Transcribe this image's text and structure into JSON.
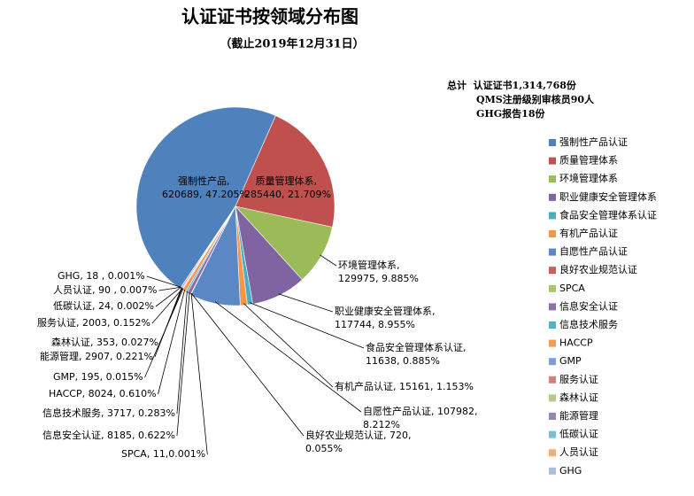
{
  "chart_data": {
    "type": "pie",
    "title": "认证证书按领域分布图",
    "subtitle": "（截止2019年12月31日）",
    "notes": [
      "总计  认证证书1,314,768份",
      "QMS注册级别审核员90人",
      "GHG报告18份"
    ],
    "categories": [
      "强制性产品认证",
      "质量管理体系",
      "环境管理体系",
      "职业健康安全管理体系",
      "食品安全管理体系认证",
      "有机产品认证",
      "自愿性产品认证",
      "良好农业规范认证",
      "SPCA",
      "信息安全认证",
      "信息技术服务",
      "HACCP",
      "GMP",
      "服务认证",
      "森林认证",
      "能源管理",
      "低碳认证",
      "人员认证",
      "GHG"
    ],
    "values": [
      620689,
      285440,
      129975,
      117744,
      11638,
      15161,
      107982,
      720,
      11,
      8185,
      3717,
      8024,
      195,
      2003,
      353,
      2907,
      24,
      90,
      18
    ],
    "value_labels": [
      "强制性产品, 620689, 47.205%",
      "质量管理体系, 285440, 21.709%",
      "环境管理体系, 129975, 9.885%",
      "职业健康安全管理体系, 117744, 8.955%",
      "食品安全管理体系认证, 11638, 0.885%",
      "有机产品认证, 15161, 1.153%",
      "自愿性产品认证, 107982, 8.212%",
      "良好农业规范认证, 720, 0.055%",
      "SPCA, 11,0.001%",
      "信息安全认证, 8185, 0.622%",
      "信息技术服务, 3717, 0.283%",
      "HACCP, 8024, 0.610%",
      "GMP, 195, 0.015%",
      "服务认证, 2003, 0.152%",
      "森林认证, 353, 0.027%",
      "能源管理, 2907, 0.221%",
      "低碳认证, 24, 0.002%",
      "人员认证, 90 , 0.007%",
      "GHG, 18 , 0.001%"
    ],
    "colors": [
      "#4f81bd",
      "#c0504d",
      "#9bbb59",
      "#8064a2",
      "#4bacc6",
      "#f79646",
      "#5b87c5",
      "#c85d5a",
      "#a9c66e",
      "#8a70ad",
      "#52b4cc",
      "#f79a50",
      "#7e9fd4",
      "#d3817e",
      "#b6cc88",
      "#9585b8",
      "#75c0d2",
      "#f8ac70",
      "#a9bfe2"
    ],
    "legend": "right"
  }
}
